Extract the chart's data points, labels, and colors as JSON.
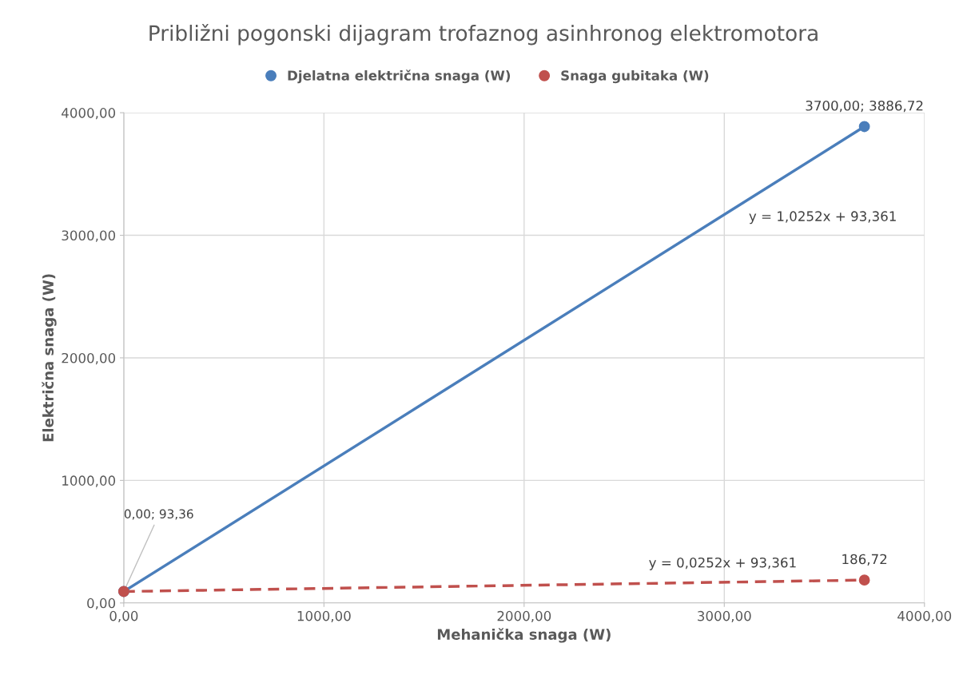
{
  "chart_data": {
    "type": "scatter",
    "title": "Približni pogonski dijagram trofaznog asinhronog elektromotora",
    "xlabel": "Mehanička snaga (W)",
    "ylabel": "Električna snaga (W)",
    "x": [
      0,
      3700
    ],
    "series": [
      {
        "name": "Djelatna električna snaga (W)",
        "color": "#4a7ebb",
        "marker": "circle",
        "values": [
          93.36,
          3886.72
        ],
        "value_labels": [
          "0,00; 93,36",
          "3700,00; 3886,72"
        ]
      },
      {
        "name": "Snaga gubitaka (W)",
        "color": "#c0504d",
        "marker": "circle",
        "values": [
          93.36,
          186.72
        ],
        "value_labels": [
          null,
          "186,72"
        ]
      },
      {
        "type": "line",
        "color": "#4a7ebb",
        "line_style": "solid",
        "values": [
          93.36,
          3886.72
        ]
      },
      {
        "type": "line",
        "color": "#c0504d",
        "line_style": "dashed",
        "values": [
          93.36,
          186.72
        ]
      }
    ],
    "annotations": [
      {
        "text": "y = 1,0252x + 93,361",
        "x": 3100,
        "y": 3271
      },
      {
        "text": "y = 0,0252x + 93,361",
        "x": 2600,
        "y": 159
      }
    ],
    "xlim": [
      0,
      4000
    ],
    "xticks": [
      {
        "value": 0,
        "label": "0,00"
      },
      {
        "value": 1000,
        "label": "1000,00"
      },
      {
        "value": 2000,
        "label": "2000,00"
      },
      {
        "value": 3000,
        "label": "3000,00"
      },
      {
        "value": 4000,
        "label": "4000,00"
      }
    ],
    "ylim": [
      0,
      4000
    ],
    "yticks": [
      {
        "value": 0,
        "label": "0,00"
      },
      {
        "value": 1000,
        "label": "1000,00"
      },
      {
        "value": 2000,
        "label": "2000,00"
      },
      {
        "value": 3000,
        "label": "3000,00"
      },
      {
        "value": 4000,
        "label": "4000,00"
      }
    ],
    "grid": true,
    "legend": "top"
  }
}
